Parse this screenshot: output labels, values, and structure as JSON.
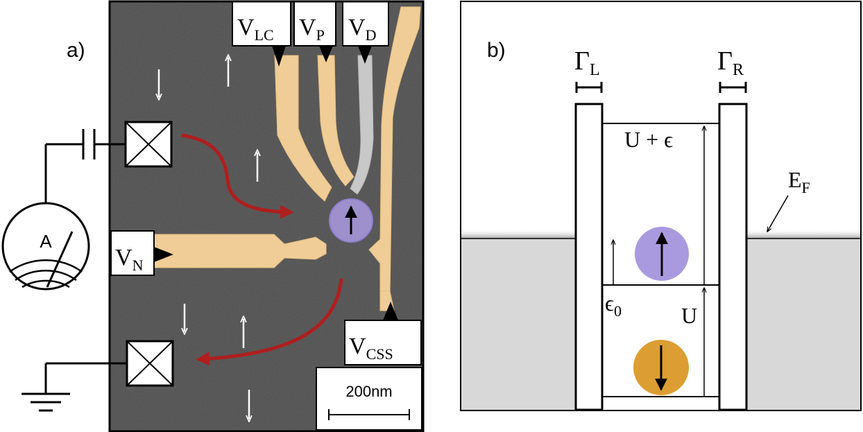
{
  "panel_a": {
    "label": "a)",
    "gate_labels": {
      "lc": {
        "main": "V",
        "sub": "LC"
      },
      "p": {
        "main": "V",
        "sub": "P"
      },
      "d": {
        "main": "V",
        "sub": "D"
      },
      "n": {
        "main": "V",
        "sub": "N"
      },
      "css": {
        "main": "V",
        "sub": "CSS"
      }
    },
    "ammeter_label": "A",
    "scale_bar_label": "200nm",
    "colors": {
      "gate": "#f0cd96",
      "gate_gray": "#c8c8c8",
      "sem_background": "#6b6b6b",
      "current_arrow": "#b01e1e",
      "dot": "#a99ae0"
    }
  },
  "panel_b": {
    "label": "b)",
    "gamma_left": {
      "main": "Γ",
      "sub": "L"
    },
    "gamma_right": {
      "main": "Γ",
      "sub": "R"
    },
    "level_upper": "U + ϵ",
    "level_eps": {
      "main": "ϵ",
      "sub": "0"
    },
    "level_u": "U",
    "fermi": {
      "main": "E",
      "sub": "F"
    },
    "colors": {
      "fermi_sea": "#d8d8d8",
      "spin_up_dot": "#a99ae0",
      "spin_down_dot": "#dc9e32"
    }
  }
}
